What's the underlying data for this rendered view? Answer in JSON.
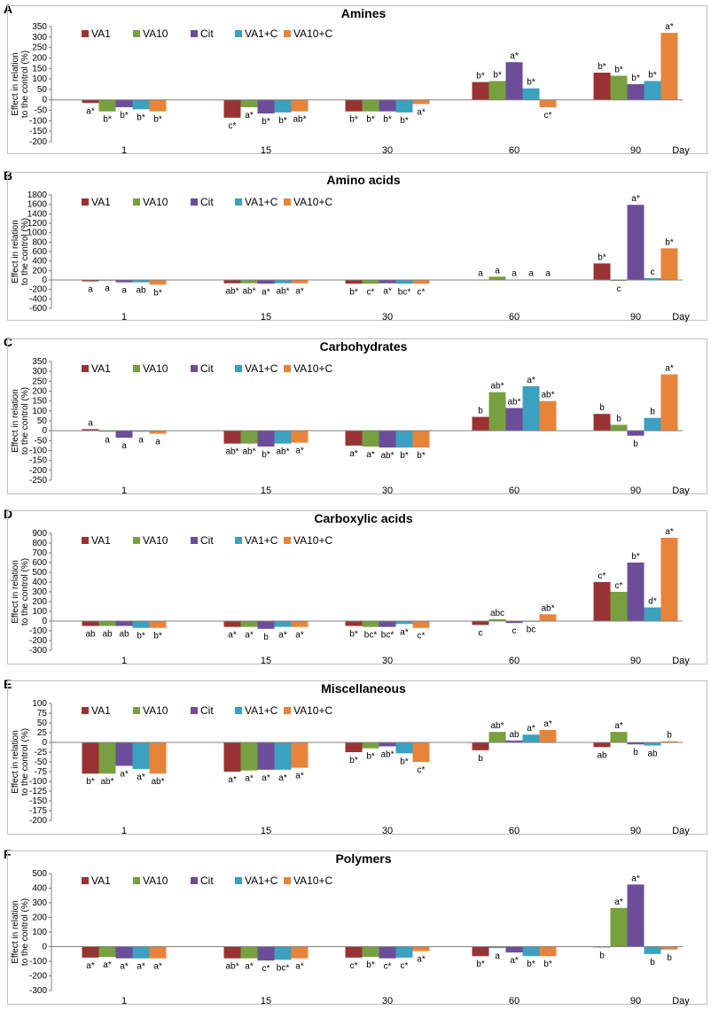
{
  "figure": {
    "panel_letters": [
      "A",
      "B",
      "C",
      "D",
      "E",
      "F"
    ],
    "x_axis_title": "Day",
    "y_axis_title_line1": "Effect in relation",
    "y_axis_title_line2": "to the control (%)"
  },
  "chart_data": [
    {
      "type": "bar",
      "title": "Amines",
      "categories": [
        "1",
        "15",
        "30",
        "60",
        "90"
      ],
      "xlabel": "Day",
      "ylabel": "Effect in relation to the control (%)",
      "ylim": [
        -200,
        350
      ],
      "yticks": [
        -200,
        -150,
        -100,
        -50,
        0,
        50,
        100,
        150,
        200,
        250,
        300,
        350
      ],
      "legend": "top-left",
      "colors": [
        "#993333",
        "#77a040",
        "#6c4d9a",
        "#3ca0c0",
        "#e8843a"
      ],
      "series": [
        {
          "name": "VA1",
          "values": [
            -15,
            -85,
            -55,
            85,
            130
          ],
          "labels": [
            "a*",
            "c*",
            "b*",
            "b*",
            "b*"
          ]
        },
        {
          "name": "VA10",
          "values": [
            -55,
            -35,
            -55,
            90,
            115
          ],
          "labels": [
            "b*",
            "a*",
            "b*",
            "b*",
            "b*"
          ]
        },
        {
          "name": "Cit",
          "values": [
            -35,
            -65,
            -55,
            180,
            75
          ],
          "labels": [
            "b*",
            "b*",
            "b*",
            "a*",
            "b*"
          ]
        },
        {
          "name": "VA1+C",
          "values": [
            -45,
            -60,
            -60,
            55,
            90
          ],
          "labels": [
            "b*",
            "b*",
            "b*",
            "b*",
            "b*"
          ]
        },
        {
          "name": "VA10+C",
          "values": [
            -55,
            -55,
            -20,
            -35,
            320
          ],
          "labels": [
            "b*",
            "ab*",
            "a*",
            "c*",
            "a*"
          ]
        }
      ]
    },
    {
      "type": "bar",
      "title": "Amino acids",
      "categories": [
        "1",
        "15",
        "30",
        "60",
        "90"
      ],
      "xlabel": "Day",
      "ylabel": "Effect in relation to the control (%)",
      "ylim": [
        -600,
        1800
      ],
      "yticks": [
        -600,
        -400,
        -200,
        0,
        200,
        400,
        600,
        800,
        1000,
        1200,
        1400,
        1600,
        1800
      ],
      "legend": "top-left",
      "colors": [
        "#993333",
        "#77a040",
        "#6c4d9a",
        "#3ca0c0",
        "#e8843a"
      ],
      "series": [
        {
          "name": "VA1",
          "values": [
            -30,
            -70,
            -80,
            5,
            350
          ],
          "labels": [
            "a",
            "ab*",
            "b*",
            "a",
            "b*"
          ]
        },
        {
          "name": "VA10",
          "values": [
            -10,
            -70,
            -80,
            70,
            -20
          ],
          "labels": [
            "a",
            "ab*",
            "c*",
            "a",
            "c"
          ]
        },
        {
          "name": "Cit",
          "values": [
            -50,
            -80,
            -70,
            5,
            1590
          ],
          "labels": [
            "a",
            "a*",
            "a*",
            "a",
            "a*"
          ]
        },
        {
          "name": "VA1+C",
          "values": [
            -50,
            -70,
            -80,
            5,
            40
          ],
          "labels": [
            "ab",
            "ab*",
            "bc*",
            "a",
            "c"
          ]
        },
        {
          "name": "VA10+C",
          "values": [
            -100,
            -70,
            -80,
            5,
            670
          ],
          "labels": [
            "b*",
            "a*",
            "c*",
            "a",
            "b*"
          ]
        }
      ]
    },
    {
      "type": "bar",
      "title": "Carbohydrates",
      "categories": [
        "1",
        "15",
        "30",
        "60",
        "90"
      ],
      "xlabel": "Day",
      "ylabel": "Effect in relation to the control (%)",
      "ylim": [
        -250,
        350
      ],
      "yticks": [
        -250,
        -200,
        -150,
        -100,
        -50,
        0,
        50,
        100,
        150,
        200,
        250,
        300,
        350
      ],
      "legend": "top-left",
      "colors": [
        "#993333",
        "#77a040",
        "#6c4d9a",
        "#3ca0c0",
        "#e8843a"
      ],
      "series": [
        {
          "name": "VA1",
          "values": [
            8,
            -65,
            -75,
            70,
            85
          ],
          "labels": [
            "a",
            "ab*",
            "a*",
            "b",
            "b"
          ]
        },
        {
          "name": "VA10",
          "values": [
            -5,
            -65,
            -80,
            195,
            30
          ],
          "labels": [
            "a",
            "ab*",
            "a*",
            "ab*",
            "b"
          ]
        },
        {
          "name": "Cit",
          "values": [
            -35,
            -80,
            -85,
            115,
            -25
          ],
          "labels": [
            "a",
            "b*",
            "ab*",
            "ab*",
            "b"
          ]
        },
        {
          "name": "VA1+C",
          "values": [
            -5,
            -65,
            -85,
            225,
            65
          ],
          "labels": [
            "a",
            "ab*",
            "b*",
            "a*",
            "b"
          ]
        },
        {
          "name": "VA10+C",
          "values": [
            -15,
            -60,
            -85,
            150,
            285
          ],
          "labels": [
            "a",
            "a*",
            "b*",
            "ab*",
            "a*"
          ]
        }
      ]
    },
    {
      "type": "bar",
      "title": "Carboxylic acids",
      "categories": [
        "1",
        "15",
        "30",
        "60",
        "90"
      ],
      "xlabel": "Day",
      "ylabel": "Effect in relation to the control (%)",
      "ylim": [
        -300,
        900
      ],
      "yticks": [
        -300,
        -200,
        -100,
        0,
        100,
        200,
        300,
        400,
        500,
        600,
        700,
        800,
        900
      ],
      "legend": "top-left",
      "colors": [
        "#993333",
        "#77a040",
        "#6c4d9a",
        "#3ca0c0",
        "#e8843a"
      ],
      "series": [
        {
          "name": "VA1",
          "values": [
            -50,
            -60,
            -50,
            -40,
            400
          ],
          "labels": [
            "ab",
            "a*",
            "b*",
            "c",
            "c*"
          ]
        },
        {
          "name": "VA10",
          "values": [
            -50,
            -60,
            -60,
            20,
            300
          ],
          "labels": [
            "ab",
            "a*",
            "bc*",
            "abc",
            "c*"
          ]
        },
        {
          "name": "Cit",
          "values": [
            -50,
            -80,
            -60,
            -20,
            600
          ],
          "labels": [
            "ab",
            "b",
            "bc*",
            "c",
            "b*"
          ]
        },
        {
          "name": "VA1+C",
          "values": [
            -70,
            -60,
            -30,
            -5,
            140
          ],
          "labels": [
            "b*",
            "a*",
            "a*",
            "bc",
            "d*"
          ]
        },
        {
          "name": "VA10+C",
          "values": [
            -70,
            -60,
            -70,
            70,
            855
          ],
          "labels": [
            "b*",
            "a*",
            "c*",
            "ab*",
            "a*"
          ]
        }
      ]
    },
    {
      "type": "bar",
      "title": "Miscellaneous",
      "categories": [
        "1",
        "15",
        "30",
        "60",
        "90"
      ],
      "xlabel": "Day",
      "ylabel": "Effect in relation to the control (%)",
      "ylim": [
        -200,
        100
      ],
      "yticks": [
        -200,
        -175,
        -150,
        -125,
        -100,
        -75,
        -50,
        -25,
        0,
        25,
        50,
        75,
        100
      ],
      "legend": "top-left",
      "colors": [
        "#993333",
        "#77a040",
        "#6c4d9a",
        "#3ca0c0",
        "#e8843a"
      ],
      "series": [
        {
          "name": "VA1",
          "values": [
            -80,
            -75,
            -25,
            -20,
            -12
          ],
          "labels": [
            "b*",
            "a*",
            "b*",
            "b",
            "ab"
          ]
        },
        {
          "name": "VA10",
          "values": [
            -80,
            -72,
            -15,
            27,
            27
          ],
          "labels": [
            "ab*",
            "a*",
            "b*",
            "ab*",
            "a*"
          ]
        },
        {
          "name": "Cit",
          "values": [
            -60,
            -70,
            -10,
            5,
            -5
          ],
          "labels": [
            "a*",
            "a*",
            "ab*",
            "ab",
            "b"
          ]
        },
        {
          "name": "VA1+C",
          "values": [
            -68,
            -70,
            -28,
            20,
            -8
          ],
          "labels": [
            "a*",
            "a*",
            "b*",
            "a*",
            "ab"
          ]
        },
        {
          "name": "VA10+C",
          "values": [
            -80,
            -65,
            -50,
            32,
            3
          ],
          "labels": [
            "ab*",
            "a*",
            "c*",
            "a*",
            "b"
          ]
        }
      ]
    },
    {
      "type": "bar",
      "title": "Polymers",
      "categories": [
        "1",
        "15",
        "30",
        "60",
        "90"
      ],
      "xlabel": "Day",
      "ylabel": "Effect in relation to the control (%)",
      "ylim": [
        -300,
        500
      ],
      "yticks": [
        -300,
        -200,
        -100,
        0,
        100,
        200,
        300,
        400,
        500
      ],
      "legend": "top-left",
      "colors": [
        "#993333",
        "#77a040",
        "#6c4d9a",
        "#3ca0c0",
        "#e8843a"
      ],
      "series": [
        {
          "name": "VA1",
          "values": [
            -75,
            -80,
            -75,
            -65,
            -5
          ],
          "labels": [
            "a*",
            "ab*",
            "c*",
            "b*",
            "b"
          ]
        },
        {
          "name": "VA10",
          "values": [
            -70,
            -80,
            -70,
            -10,
            265
          ],
          "labels": [
            "a*",
            "a*",
            "b*",
            "a",
            "a*"
          ]
        },
        {
          "name": "Cit",
          "values": [
            -80,
            -95,
            -80,
            -40,
            425
          ],
          "labels": [
            "a*",
            "c*",
            "c*",
            "a*",
            "a*"
          ]
        },
        {
          "name": "VA1+C",
          "values": [
            -80,
            -90,
            -75,
            -65,
            -50
          ],
          "labels": [
            "a*",
            "bc*",
            "c*",
            "b*",
            "b"
          ]
        },
        {
          "name": "VA10+C",
          "values": [
            -80,
            -80,
            -30,
            -65,
            -20
          ],
          "labels": [
            "a*",
            "a*",
            "a*",
            "b*",
            "b"
          ]
        }
      ]
    }
  ]
}
